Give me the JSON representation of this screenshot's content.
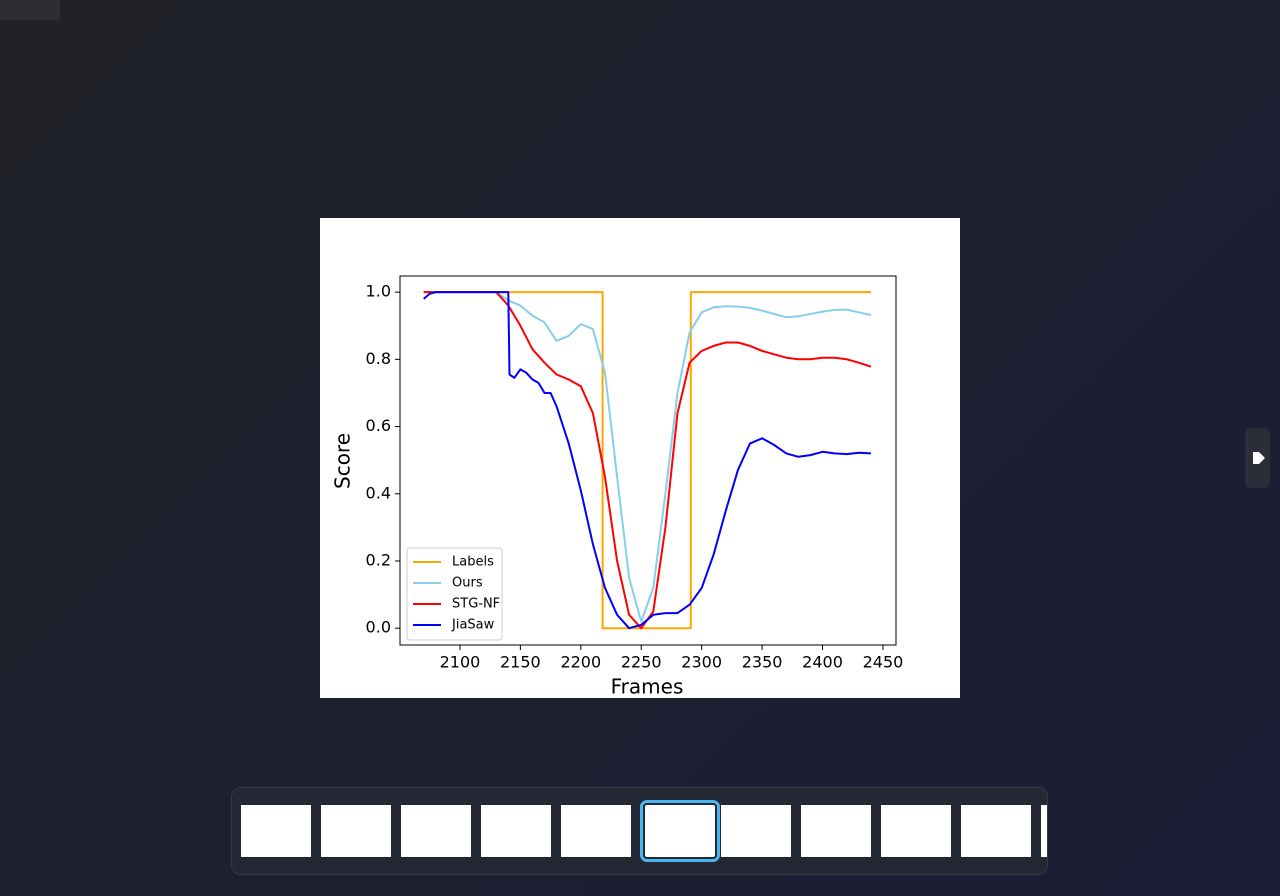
{
  "chart_data": {
    "type": "line",
    "xlabel": "Frames",
    "ylabel": "Score",
    "xlim": [
      2050.4,
      2460.8
    ],
    "ylim": [
      -0.05,
      1.048
    ],
    "xticks": [
      2100,
      2150,
      2200,
      2250,
      2300,
      2350,
      2400,
      2450
    ],
    "yticks": [
      {
        "value": 0,
        "label": "0.0"
      },
      0.2,
      0.4,
      0.6,
      0.8,
      {
        "value": 1,
        "label": "1.0"
      }
    ],
    "legend": "lower left",
    "series": [
      {
        "name": "Labels",
        "color": "#ffa500",
        "x": [
          2070,
          2218,
          2218,
          2291,
          2291,
          2440
        ],
        "values": [
          1,
          1,
          0,
          0,
          1,
          1
        ]
      },
      {
        "name": "Ours",
        "color": "#87ceeb",
        "x": [
          2070,
          2080,
          2090,
          2100,
          2110,
          2120,
          2130,
          2140,
          2150,
          2160,
          2170,
          2180,
          2190,
          2200,
          2210,
          2220,
          2230,
          2240,
          2250,
          2260,
          2270,
          2280,
          2290,
          2300,
          2310,
          2320,
          2330,
          2340,
          2350,
          2360,
          2370,
          2380,
          2390,
          2400,
          2410,
          2420,
          2430,
          2440
        ],
        "values": [
          1,
          1,
          1,
          1,
          1,
          1,
          1,
          0.975,
          0.96,
          0.93,
          0.91,
          0.855,
          0.87,
          0.905,
          0.89,
          0.76,
          0.45,
          0.15,
          0.02,
          0.12,
          0.4,
          0.7,
          0.88,
          0.94,
          0.955,
          0.958,
          0.957,
          0.953,
          0.945,
          0.935,
          0.925,
          0.928,
          0.935,
          0.942,
          0.947,
          0.948,
          0.94,
          0.932
        ]
      },
      {
        "name": "STG-NF",
        "color": "#ff0000",
        "x": [
          2070,
          2080,
          2090,
          2100,
          2110,
          2120,
          2130,
          2140,
          2150,
          2160,
          2170,
          2180,
          2190,
          2200,
          2210,
          2220,
          2230,
          2240,
          2250,
          2260,
          2270,
          2280,
          2290,
          2300,
          2310,
          2320,
          2330,
          2340,
          2350,
          2360,
          2370,
          2380,
          2390,
          2400,
          2410,
          2420,
          2430,
          2440
        ],
        "values": [
          1,
          1,
          1,
          1,
          1,
          1,
          1,
          0.96,
          0.9,
          0.83,
          0.79,
          0.755,
          0.74,
          0.72,
          0.64,
          0.45,
          0.2,
          0.04,
          0.0,
          0.05,
          0.3,
          0.64,
          0.79,
          0.825,
          0.84,
          0.85,
          0.85,
          0.84,
          0.825,
          0.815,
          0.805,
          0.8,
          0.8,
          0.805,
          0.805,
          0.8,
          0.79,
          0.778
        ]
      },
      {
        "name": "JiaSaw",
        "color": "#0000ff",
        "x": [
          2070,
          2075,
          2080,
          2090,
          2100,
          2110,
          2120,
          2130,
          2140,
          2141,
          2145,
          2150,
          2155,
          2160,
          2165,
          2170,
          2175,
          2180,
          2190,
          2200,
          2210,
          2220,
          2230,
          2240,
          2250,
          2260,
          2270,
          2280,
          2290,
          2300,
          2310,
          2320,
          2330,
          2340,
          2350,
          2360,
          2370,
          2380,
          2390,
          2400,
          2410,
          2420,
          2430,
          2440
        ],
        "values": [
          0.98,
          0.995,
          1,
          1,
          1,
          1,
          1,
          1,
          1,
          0.755,
          0.745,
          0.77,
          0.76,
          0.74,
          0.73,
          0.7,
          0.7,
          0.66,
          0.55,
          0.41,
          0.25,
          0.12,
          0.04,
          0.0,
          0.01,
          0.04,
          0.045,
          0.045,
          0.07,
          0.12,
          0.22,
          0.35,
          0.47,
          0.55,
          0.565,
          0.545,
          0.52,
          0.51,
          0.515,
          0.525,
          0.52,
          0.518,
          0.522,
          0.52
        ]
      }
    ]
  }
}
